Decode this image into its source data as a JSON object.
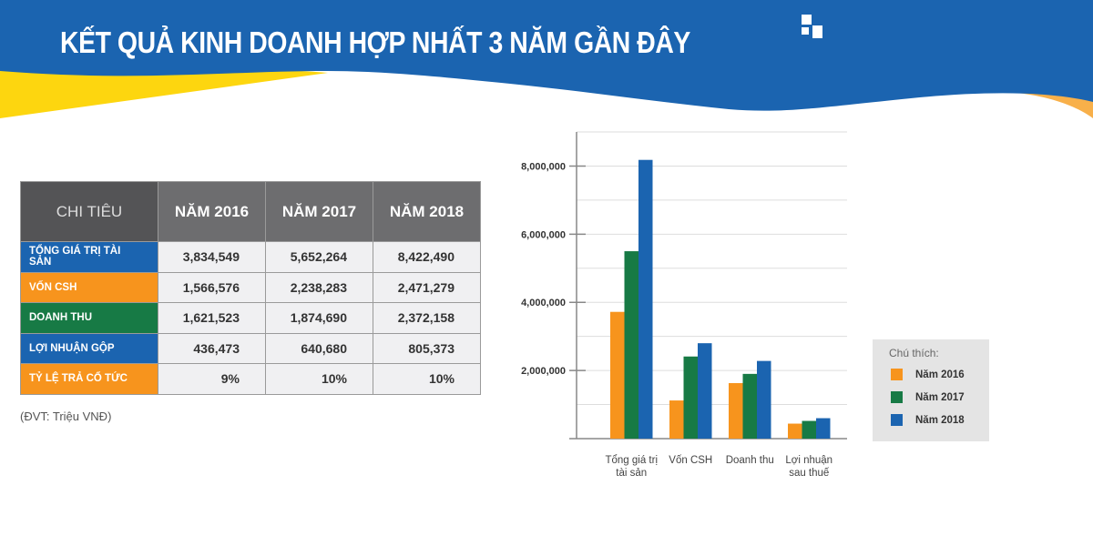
{
  "title": "KẾT QUẢ KINH DOANH HỢP NHẤT 3 NĂM GẦN ĐÂY",
  "colors": {
    "blue": "#1b64b0",
    "orange": "#f7941d",
    "green": "#177a45",
    "yellow": "#fdd60f",
    "header_gray": "#6d6d6f"
  },
  "table": {
    "headers": [
      "CHI TIÊU",
      "NĂM 2016",
      "NĂM 2017",
      "NĂM 2018"
    ],
    "rows": [
      {
        "label": "TỔNG GIÁ TRỊ TÀI SẢN",
        "color": "#1b64b0",
        "values": [
          "3,834,549",
          "5,652,264",
          "8,422,490"
        ]
      },
      {
        "label": "VỐN CSH",
        "color": "#f7941d",
        "values": [
          "1,566,576",
          "2,238,283",
          "2,471,279"
        ]
      },
      {
        "label": "DOANH THU",
        "color": "#177a45",
        "values": [
          "1,621,523",
          "1,874,690",
          "2,372,158"
        ]
      },
      {
        "label": "LỢI NHUẬN GỘP",
        "color": "#1b64b0",
        "values": [
          "436,473",
          "640,680",
          "805,373"
        ]
      },
      {
        "label": "TỶ LỆ TRẢ CỔ TỨC",
        "color": "#f7941d",
        "values": [
          "9%",
          "10%",
          "10%"
        ]
      }
    ],
    "unit_note": "(ĐVT: Triệu VNĐ)"
  },
  "chart_data": {
    "type": "bar",
    "categories": [
      "Tổng giá trị tài sản",
      "Vốn CSH",
      "Doanh thu",
      "Lợi nhuận sau thuế"
    ],
    "series": [
      {
        "name": "Năm 2016",
        "color": "#f7941d",
        "values": [
          3720000,
          1120000,
          1630000,
          440000
        ]
      },
      {
        "name": "Năm 2017",
        "color": "#177a45",
        "values": [
          5500000,
          2410000,
          1900000,
          520000
        ]
      },
      {
        "name": "Năm 2018",
        "color": "#1b64b0",
        "values": [
          8180000,
          2800000,
          2280000,
          600000
        ]
      }
    ],
    "yticks": [
      "2,000,000",
      "4,000,000",
      "6,000,000",
      "8,000,000"
    ],
    "ytick_values": [
      2000000,
      4000000,
      6000000,
      8000000
    ],
    "ylim": [
      0,
      9000000
    ],
    "grid": true,
    "legend_title": "Chú thích",
    "legend_position": "right"
  }
}
